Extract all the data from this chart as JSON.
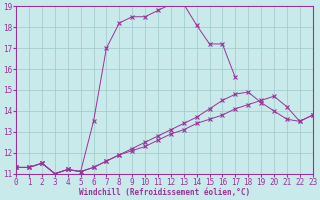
{
  "xlabel": "Windchill (Refroidissement éolien,°C)",
  "background_color": "#c8eaea",
  "grid_color": "#9ec8c8",
  "line_color": "#993399",
  "xmin": 0,
  "xmax": 23,
  "ymin": 11,
  "ymax": 19,
  "line1_x": [
    0,
    1,
    2,
    3,
    4,
    5,
    6,
    7,
    8,
    9,
    10,
    11,
    12,
    13,
    14,
    15,
    16,
    17
  ],
  "line1_y": [
    11.3,
    11.3,
    11.5,
    11.0,
    11.2,
    11.1,
    13.5,
    17.0,
    18.2,
    18.5,
    18.5,
    18.8,
    19.1,
    19.1,
    18.1,
    17.2,
    17.2,
    15.6
  ],
  "line2_x": [
    0,
    1,
    2,
    3,
    4,
    5,
    6,
    7,
    8,
    9,
    10,
    11,
    12,
    13,
    14,
    15,
    16,
    17,
    18,
    19,
    20,
    21,
    22,
    23
  ],
  "line2_y": [
    11.3,
    11.3,
    11.5,
    11.0,
    11.2,
    11.1,
    11.3,
    11.6,
    11.9,
    12.2,
    12.5,
    12.8,
    13.1,
    13.4,
    13.7,
    14.1,
    14.5,
    14.8,
    14.9,
    14.4,
    14.0,
    13.6,
    13.5,
    13.8
  ],
  "line3_x": [
    0,
    1,
    2,
    3,
    4,
    5,
    6,
    7,
    8,
    9,
    10,
    11,
    12,
    13,
    14,
    15,
    16,
    17,
    18,
    19,
    20,
    21,
    22,
    23
  ],
  "line3_y": [
    11.3,
    11.3,
    11.5,
    11.0,
    11.2,
    11.1,
    11.3,
    11.6,
    11.9,
    12.1,
    12.3,
    12.6,
    12.9,
    13.1,
    13.4,
    13.6,
    13.8,
    14.1,
    14.3,
    14.5,
    14.7,
    14.2,
    13.5,
    13.8
  ],
  "tick_fontsize": 5.5,
  "xlabel_fontsize": 5.5
}
